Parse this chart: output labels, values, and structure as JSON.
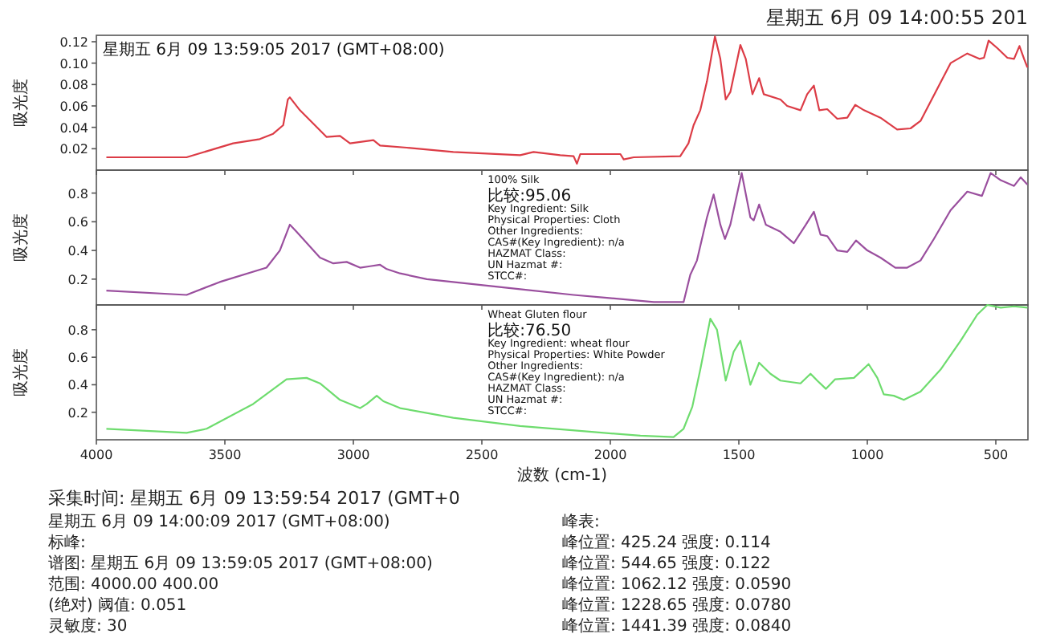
{
  "chart_data": [
    {
      "type": "line",
      "title": "星期五 6月 09 14:00:55 201",
      "ylabel": "吸光度",
      "xlim": [
        4000,
        375
      ],
      "xticks": [
        4000,
        3500,
        3000,
        2500,
        2000,
        1500,
        1000,
        500
      ],
      "tick_labels": "y",
      "ylim": [
        0,
        0.126
      ],
      "yticks": [
        0.02,
        0.04,
        0.06,
        0.08,
        {
          "value": 0.1,
          "label": "0.10"
        },
        0.12
      ],
      "annotations": [
        "星期五 6月 09 13:59:05 2017 (GMT+08:00)"
      ],
      "series": [
        {
          "color": "#dc3c46",
          "x": [
            3961,
            3649,
            3468,
            3364,
            3312,
            3273,
            3255,
            3247,
            3208,
            3104,
            3052,
            3013,
            2922,
            2896,
            2792,
            2611,
            2351,
            2299,
            2195,
            2143,
            2130,
            2117,
            1961,
            1948,
            1909,
            1728,
            1696,
            1676,
            1650,
            1624,
            1593,
            1572,
            1551,
            1533,
            1494,
            1473,
            1447,
            1421,
            1403,
            1338,
            1312,
            1260,
            1234,
            1208,
            1187,
            1156,
            1117,
            1078,
            1047,
            1013,
            949,
            884,
            832,
            793,
            741,
            676,
            611,
            564,
            546,
            528,
            494,
            455,
            429,
            408,
            390,
            377
          ],
          "values": [
            0.012,
            0.012,
            0.025,
            0.029,
            0.034,
            0.042,
            0.066,
            0.068,
            0.056,
            0.031,
            0.032,
            0.025,
            0.028,
            0.023,
            0.021,
            0.017,
            0.014,
            0.017,
            0.014,
            0.013,
            0.006,
            0.015,
            0.015,
            0.01,
            0.012,
            0.013,
            0.025,
            0.042,
            0.056,
            0.083,
            0.125,
            0.104,
            0.066,
            0.073,
            0.117,
            0.104,
            0.071,
            0.086,
            0.071,
            0.066,
            0.06,
            0.056,
            0.071,
            0.079,
            0.056,
            0.057,
            0.048,
            0.049,
            0.061,
            0.056,
            0.049,
            0.038,
            0.039,
            0.046,
            0.07,
            0.1,
            0.109,
            0.104,
            0.105,
            0.121,
            0.114,
            0.105,
            0.104,
            0.116,
            0.104,
            0.096
          ]
        }
      ]
    },
    {
      "type": "line",
      "ylabel": "吸光度",
      "xlim": [
        4000,
        375
      ],
      "xticks": [
        4000,
        3500,
        3000,
        2500,
        2000,
        1500,
        1000,
        500
      ],
      "tick_labels": "y",
      "ylim": [
        0.02,
        0.96
      ],
      "yticks": [
        0.2,
        0.4,
        0.6,
        0.8
      ],
      "annotations": [
        "100% Silk",
        "比较:95.06",
        "Key Ingredient:  Silk",
        "Physical Properties:  Cloth",
        "Other Ingredients:",
        "CAS#(Key Ingredient):  n/a",
        "HAZMAT Class:",
        "UN Hazmat #:",
        "STCC#:"
      ],
      "series": [
        {
          "color": "#9a4f9e",
          "x": [
            3961,
            3649,
            3520,
            3338,
            3286,
            3247,
            3221,
            3130,
            3078,
            3026,
            2974,
            2935,
            2896,
            2870,
            2818,
            2714,
            2351,
            2143,
            2013,
            1831,
            1715,
            1689,
            1663,
            1624,
            1598,
            1572,
            1554,
            1533,
            1489,
            1455,
            1442,
            1421,
            1395,
            1338,
            1286,
            1239,
            1208,
            1182,
            1156,
            1117,
            1078,
            1044,
            1000,
            949,
            891,
            845,
            793,
            741,
            676,
            611,
            554,
            520,
            481,
            429,
            403,
            377
          ],
          "values": [
            0.12,
            0.09,
            0.18,
            0.28,
            0.4,
            0.58,
            0.53,
            0.35,
            0.31,
            0.32,
            0.28,
            0.29,
            0.3,
            0.27,
            0.24,
            0.2,
            0.13,
            0.09,
            0.07,
            0.04,
            0.04,
            0.23,
            0.33,
            0.63,
            0.79,
            0.58,
            0.48,
            0.58,
            0.94,
            0.63,
            0.61,
            0.72,
            0.58,
            0.53,
            0.45,
            0.58,
            0.67,
            0.51,
            0.5,
            0.4,
            0.39,
            0.47,
            0.4,
            0.35,
            0.28,
            0.28,
            0.33,
            0.48,
            0.68,
            0.81,
            0.78,
            0.94,
            0.89,
            0.85,
            0.91,
            0.86
          ]
        }
      ]
    },
    {
      "type": "line",
      "ylabel": "吸光度",
      "xlabel": "波数 (cm-1)",
      "xlim": [
        4000,
        375
      ],
      "xticks": [
        4000,
        3500,
        3000,
        2500,
        2000,
        1500,
        1000,
        500
      ],
      "ylim": [
        0,
        0.98
      ],
      "yticks": [
        0.2,
        0.4,
        0.6,
        0.8
      ],
      "annotations": [
        "Wheat Gluten flour",
        "比较:76.50",
        "Key Ingredient:  wheat flour",
        "Physical Properties:  White Powder",
        "Other Ingredients:",
        "CAS#(Key Ingredient):  n/a",
        "HAZMAT Class:",
        "UN Hazmat #:",
        "STCC#:"
      ],
      "series": [
        {
          "color": "#6edc6e",
          "x": [
            3961,
            3649,
            3571,
            3390,
            3260,
            3182,
            3130,
            3052,
            2974,
            2948,
            2909,
            2883,
            2818,
            2611,
            2351,
            2091,
            1883,
            1754,
            1715,
            1681,
            1650,
            1611,
            1585,
            1551,
            1520,
            1494,
            1455,
            1421,
            1377,
            1338,
            1260,
            1221,
            1195,
            1161,
            1125,
            1052,
            995,
            961,
            936,
            897,
            858,
            793,
            715,
            637,
            572,
            533,
            481,
            429,
            377
          ],
          "values": [
            0.08,
            0.05,
            0.08,
            0.26,
            0.44,
            0.45,
            0.41,
            0.29,
            0.23,
            0.26,
            0.32,
            0.28,
            0.23,
            0.16,
            0.1,
            0.06,
            0.03,
            0.02,
            0.08,
            0.24,
            0.51,
            0.88,
            0.8,
            0.43,
            0.64,
            0.72,
            0.4,
            0.56,
            0.48,
            0.43,
            0.41,
            0.48,
            0.43,
            0.37,
            0.44,
            0.45,
            0.55,
            0.45,
            0.33,
            0.32,
            0.29,
            0.35,
            0.51,
            0.72,
            0.91,
            0.98,
            0.96,
            0.97,
            0.96
          ]
        }
      ]
    },
    {
      "type": "other",
      "annotations": [
        "采集时间: 星期五 6月 09 13:59:54 2017 (GMT+0",
        "星期五 6月 09 14:00:09 2017 (GMT+08:00)",
        "标峰:",
        "谱图:  星期五 6月 09 13:59:05 2017 (GMT+08:00)",
        "范围:  4000.00    400.00",
        "(绝对) 阈值:  0.051",
        "灵敏度: 30",
        "峰表:",
        "峰位置:  425.24   强度:  0.114",
        "峰位置:  544.65   强度:  0.122",
        "峰位置:  1062.12   强度:  0.0590",
        "峰位置:  1228.65   强度:  0.0780",
        "峰位置:  1441.39   强度:  0.0840"
      ]
    }
  ]
}
